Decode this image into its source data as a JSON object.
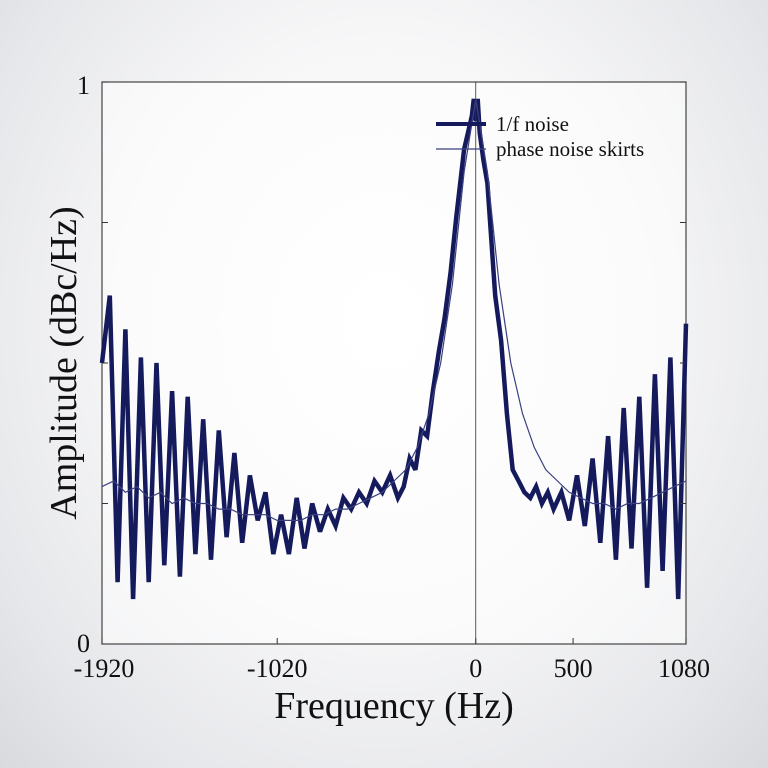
{
  "chart_data": {
    "type": "line",
    "title": "",
    "xlabel": "Frequency (Hz)",
    "ylabel": "Amplitude (dBc/Hz)",
    "xlim": [
      -1920,
      1080
    ],
    "ylim": [
      0,
      1
    ],
    "x_ticks": [
      -1920,
      -1020,
      0,
      500,
      1080
    ],
    "x_tick_labels": [
      "-1920",
      "-1020",
      "0",
      "500",
      "1080"
    ],
    "y_ticks": [
      0,
      1
    ],
    "y_tick_labels": [
      "0",
      "1"
    ],
    "grid": false,
    "legend_position": "top-right",
    "colors": {
      "line": "#141a5c",
      "thin_line": "#3a4080",
      "axis": "#333333"
    },
    "series": [
      {
        "name": "1/f noise",
        "style": "thick",
        "x": [
          -1920,
          -1880,
          -1840,
          -1800,
          -1760,
          -1720,
          -1680,
          -1640,
          -1600,
          -1560,
          -1520,
          -1480,
          -1440,
          -1400,
          -1360,
          -1320,
          -1280,
          -1240,
          -1200,
          -1160,
          -1120,
          -1080,
          -1040,
          -1000,
          -960,
          -920,
          -880,
          -840,
          -800,
          -760,
          -720,
          -680,
          -640,
          -600,
          -560,
          -520,
          -480,
          -440,
          -400,
          -370,
          -340,
          -310,
          -280,
          -250,
          -220,
          -190,
          -160,
          -130,
          -100,
          -80,
          -60,
          -40,
          -20,
          -10,
          0,
          10,
          20,
          40,
          60,
          80,
          100,
          130,
          160,
          190,
          220,
          250,
          280,
          310,
          340,
          370,
          400,
          440,
          480,
          520,
          560,
          600,
          640,
          680,
          720,
          760,
          800,
          840,
          880,
          920,
          960,
          1000,
          1040,
          1080
        ],
        "y": [
          0.5,
          0.62,
          0.11,
          0.56,
          0.08,
          0.51,
          0.11,
          0.5,
          0.14,
          0.45,
          0.12,
          0.44,
          0.16,
          0.4,
          0.15,
          0.38,
          0.19,
          0.34,
          0.18,
          0.3,
          0.22,
          0.27,
          0.16,
          0.23,
          0.16,
          0.26,
          0.17,
          0.25,
          0.2,
          0.24,
          0.21,
          0.26,
          0.24,
          0.27,
          0.25,
          0.29,
          0.27,
          0.3,
          0.26,
          0.28,
          0.33,
          0.31,
          0.38,
          0.37,
          0.45,
          0.52,
          0.58,
          0.66,
          0.76,
          0.82,
          0.88,
          0.91,
          0.94,
          0.97,
          0.93,
          0.97,
          0.91,
          0.86,
          0.82,
          0.72,
          0.62,
          0.54,
          0.41,
          0.31,
          0.29,
          0.27,
          0.26,
          0.28,
          0.25,
          0.27,
          0.24,
          0.27,
          0.22,
          0.3,
          0.21,
          0.33,
          0.18,
          0.37,
          0.15,
          0.42,
          0.17,
          0.44,
          0.1,
          0.48,
          0.13,
          0.51,
          0.08,
          0.57
        ]
      },
      {
        "name": "phase noise skirts",
        "style": "thin",
        "x": [
          -1920,
          -1860,
          -1800,
          -1740,
          -1680,
          -1620,
          -1560,
          -1500,
          -1440,
          -1380,
          -1320,
          -1260,
          -1200,
          -1140,
          -1080,
          -1020,
          -960,
          -900,
          -840,
          -780,
          -720,
          -660,
          -600,
          -540,
          -480,
          -420,
          -360,
          -300,
          -240,
          -180,
          -120,
          -60,
          0,
          60,
          120,
          180,
          240,
          300,
          360,
          420,
          480,
          540,
          600,
          660,
          720,
          780,
          840,
          900,
          960,
          1020,
          1080
        ],
        "y": [
          0.28,
          0.29,
          0.27,
          0.28,
          0.26,
          0.27,
          0.25,
          0.26,
          0.25,
          0.25,
          0.24,
          0.24,
          0.23,
          0.23,
          0.23,
          0.22,
          0.22,
          0.22,
          0.23,
          0.23,
          0.24,
          0.24,
          0.25,
          0.26,
          0.27,
          0.29,
          0.31,
          0.35,
          0.41,
          0.5,
          0.64,
          0.84,
          0.97,
          0.84,
          0.64,
          0.5,
          0.41,
          0.35,
          0.31,
          0.29,
          0.27,
          0.26,
          0.25,
          0.25,
          0.24,
          0.25,
          0.25,
          0.26,
          0.27,
          0.28,
          0.29
        ]
      }
    ]
  }
}
